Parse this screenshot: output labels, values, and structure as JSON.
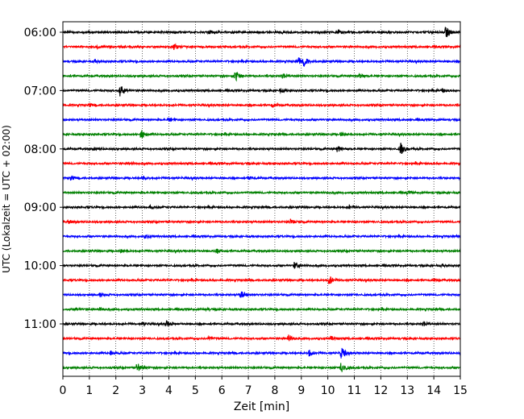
{
  "chart_data": {
    "type": "line",
    "title": "",
    "xlabel": "Zeit  [min]",
    "ylabel": "UTC (Lokalzeit = UTC + 02:00)",
    "xlim": [
      0,
      15
    ],
    "xticks": [
      0,
      1,
      2,
      3,
      4,
      5,
      6,
      7,
      8,
      9,
      10,
      11,
      12,
      13,
      14,
      15
    ],
    "ytick_labels": [
      "06:00",
      "07:00",
      "08:00",
      "09:00",
      "10:00",
      "11:00"
    ],
    "ytick_rows": [
      0,
      4,
      8,
      12,
      16,
      20
    ],
    "grid": "vertical dotted",
    "row_interval_minutes": 15,
    "series_colors": [
      "#000000",
      "#ff0000",
      "#0000ff",
      "#008000"
    ],
    "rows": [
      {
        "start": "06:00",
        "events": [
          {
            "t": 5.5,
            "a": 0.25
          },
          {
            "t": 10.4,
            "a": 0.3
          },
          {
            "t": 14.45,
            "a": 0.9
          }
        ]
      },
      {
        "start": "06:15",
        "events": [
          {
            "t": 1.3,
            "a": 0.2
          },
          {
            "t": 4.2,
            "a": 0.4
          }
        ]
      },
      {
        "start": "06:30",
        "events": [
          {
            "t": 1.2,
            "a": 0.25
          },
          {
            "t": 8.9,
            "a": 0.5
          },
          {
            "t": 9.1,
            "a": 0.6
          }
        ]
      },
      {
        "start": "06:45",
        "events": [
          {
            "t": 6.5,
            "a": 0.9
          },
          {
            "t": 8.3,
            "a": 0.3
          },
          {
            "t": 11.2,
            "a": 0.3
          }
        ]
      },
      {
        "start": "07:00",
        "events": [
          {
            "t": 2.15,
            "a": 0.9
          },
          {
            "t": 8.2,
            "a": 0.25
          },
          {
            "t": 14.3,
            "a": 0.25
          }
        ]
      },
      {
        "start": "07:15",
        "events": [
          {
            "t": 1.0,
            "a": 0.2
          },
          {
            "t": 7.9,
            "a": 0.2
          }
        ]
      },
      {
        "start": "07:30",
        "events": [
          {
            "t": 4.0,
            "a": 0.2
          }
        ]
      },
      {
        "start": "07:45",
        "events": [
          {
            "t": 2.95,
            "a": 0.7
          },
          {
            "t": 10.5,
            "a": 0.25
          }
        ]
      },
      {
        "start": "08:00",
        "events": [
          {
            "t": 1.2,
            "a": 0.2
          },
          {
            "t": 10.35,
            "a": 0.5
          },
          {
            "t": 12.75,
            "a": 0.9
          }
        ]
      },
      {
        "start": "08:15",
        "events": [
          {
            "t": 2.5,
            "a": 0.15
          }
        ]
      },
      {
        "start": "08:30",
        "events": [
          {
            "t": 0.3,
            "a": 0.3
          },
          {
            "t": 3.0,
            "a": 0.25
          },
          {
            "t": 7.0,
            "a": 0.2
          }
        ]
      },
      {
        "start": "08:45",
        "events": [
          {
            "t": 13.0,
            "a": 0.15
          }
        ]
      },
      {
        "start": "09:00",
        "events": [
          {
            "t": 3.3,
            "a": 0.2
          },
          {
            "t": 10.8,
            "a": 0.3
          }
        ]
      },
      {
        "start": "09:15",
        "events": [
          {
            "t": 0.2,
            "a": 0.25
          },
          {
            "t": 8.6,
            "a": 0.35
          }
        ]
      },
      {
        "start": "09:30",
        "events": [
          {
            "t": 3.1,
            "a": 0.25
          }
        ]
      },
      {
        "start": "09:45",
        "events": [
          {
            "t": 2.2,
            "a": 0.2
          },
          {
            "t": 5.8,
            "a": 0.25
          }
        ]
      },
      {
        "start": "10:00",
        "events": [
          {
            "t": 8.75,
            "a": 0.45
          },
          {
            "t": 14.3,
            "a": 0.2
          }
        ]
      },
      {
        "start": "10:15",
        "events": [
          {
            "t": 10.05,
            "a": 0.65
          },
          {
            "t": 14.0,
            "a": 0.15
          }
        ]
      },
      {
        "start": "10:30",
        "events": [
          {
            "t": 1.4,
            "a": 0.3
          },
          {
            "t": 6.7,
            "a": 0.7
          }
        ]
      },
      {
        "start": "10:45",
        "events": [
          {
            "t": 0.5,
            "a": 0.2
          },
          {
            "t": 1.4,
            "a": 0.2
          },
          {
            "t": 5.4,
            "a": 0.15
          }
        ]
      },
      {
        "start": "11:00",
        "events": [
          {
            "t": 3.0,
            "a": 0.25
          },
          {
            "t": 3.9,
            "a": 0.4
          },
          {
            "t": 13.6,
            "a": 0.3
          }
        ]
      },
      {
        "start": "11:15",
        "events": [
          {
            "t": 5.5,
            "a": 0.25
          },
          {
            "t": 8.5,
            "a": 0.6
          },
          {
            "t": 10.1,
            "a": 0.3
          }
        ]
      },
      {
        "start": "11:30",
        "events": [
          {
            "t": 1.8,
            "a": 0.3
          },
          {
            "t": 9.3,
            "a": 0.4
          },
          {
            "t": 10.5,
            "a": 0.85
          }
        ]
      },
      {
        "start": "11:45",
        "events": [
          {
            "t": 2.8,
            "a": 0.75
          },
          {
            "t": 10.5,
            "a": 0.85
          }
        ]
      }
    ]
  }
}
